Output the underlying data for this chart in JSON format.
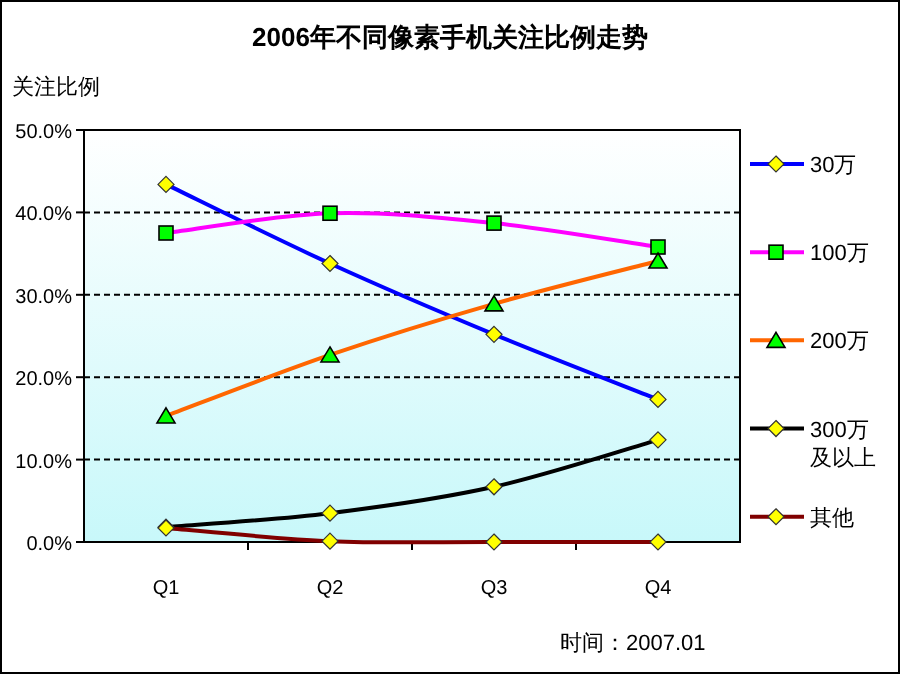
{
  "chart_data": {
    "type": "line",
    "title": "2006年不同像素手机关注比例走势",
    "ylabel": "关注比例",
    "categories": [
      "Q1",
      "Q2",
      "Q3",
      "Q4"
    ],
    "series": [
      {
        "name": "30万",
        "color": "#0000ff",
        "marker": "diamond",
        "values": [
          43.4,
          33.8,
          25.2,
          17.3
        ]
      },
      {
        "name": "100万",
        "color": "#ff00ff",
        "marker": "square",
        "values": [
          37.5,
          39.9,
          38.7,
          35.8
        ]
      },
      {
        "name": "200万",
        "color": "#ff6600",
        "marker": "triangle",
        "values": [
          15.3,
          22.7,
          28.9,
          34.1
        ]
      },
      {
        "name": "300万及以上",
        "color": "#000000",
        "marker": "diamond",
        "values": [
          1.8,
          3.5,
          6.7,
          12.4
        ]
      },
      {
        "name": "其他",
        "color": "#800000",
        "marker": "diamond",
        "values": [
          1.7,
          0.1,
          0,
          0
        ]
      }
    ],
    "ylim": [
      0,
      50
    ],
    "yticks": [
      {
        "value": 0,
        "label": "0.0%"
      },
      {
        "value": 10,
        "label": "10.0%"
      },
      {
        "value": 20,
        "label": "20.0%"
      },
      {
        "value": 30,
        "label": "30.0%"
      },
      {
        "value": 40,
        "label": "40.0%"
      },
      {
        "value": 50,
        "label": "50.0%"
      }
    ],
    "grid": "y",
    "legend": "right",
    "annotations": [
      "时间：2007.01"
    ]
  }
}
